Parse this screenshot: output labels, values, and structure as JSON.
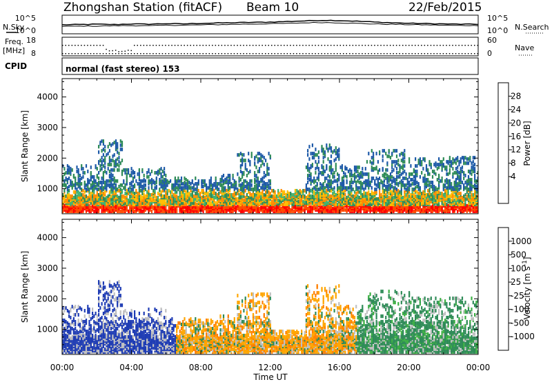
{
  "header": {
    "station_title": "Zhongshan Station (fitACF)",
    "beam": "Beam 10",
    "date": "22/Feb/2015"
  },
  "sky_panel": {
    "left_label": "N.Sky",
    "right_label": "N.Search",
    "left_ticks": [
      "10^5",
      "10^0"
    ],
    "right_ticks": [
      "10^5",
      "10^0"
    ]
  },
  "freq_panel": {
    "left_label_1": "Freq.",
    "left_label_2": "[MHz]",
    "right_label": "Nave",
    "left_ticks": [
      "18",
      "8"
    ],
    "right_ticks": [
      "60",
      "0"
    ]
  },
  "cpid_panel": {
    "label": "CPID",
    "mode_text": "normal (fast stereo) 153"
  },
  "axes": {
    "ylabel": "Slant Range [km]",
    "xlabel": "Time UT",
    "y_ticks": [
      "4000",
      "3000",
      "2000",
      "1000"
    ],
    "x_ticks": [
      "00:00",
      "04:00",
      "08:00",
      "12:00",
      "16:00",
      "20:00",
      "00:00"
    ]
  },
  "power_colorbar": {
    "label": "Power [dB]",
    "ticks": [
      "28",
      "24",
      "20",
      "16",
      "12",
      "8",
      "4"
    ],
    "colors": [
      "#ff0000",
      "#ff4a00",
      "#ff8c00",
      "#ffbf00",
      "#ffe600",
      "#3cb371",
      "#2e8b57",
      "#1e5aa8",
      "#0000ff"
    ]
  },
  "velocity_colorbar": {
    "label": "Velocity [m s",
    "label_sup": "-1",
    "label_end": "]",
    "ticks": [
      "1000",
      "500",
      "100",
      "25",
      "-25",
      "-100",
      "-500",
      "-1000"
    ],
    "colors": [
      "#1f3cb4",
      "#1f5fc0",
      "#2e8b57",
      "#3cb043",
      "#c0c0c0",
      "#ffa500",
      "#ff7f00",
      "#ff4500",
      "#ff0000"
    ]
  },
  "chart_data": [
    {
      "type": "line",
      "title": "Zhongshan Station (fitACF)",
      "xlabel": "",
      "ylabel": "N.Sky",
      "x_range_hours": [
        0,
        24
      ],
      "y_scale": "log",
      "series": [
        {
          "values_log10": [
            2.5,
            2.6,
            2.7,
            2.6,
            2.8,
            2.7,
            2.9,
            2.8,
            3.0,
            3.1,
            3.2,
            3.3,
            3.4,
            3.6,
            3.8,
            4.0,
            3.9,
            3.7,
            3.4,
            3.2,
            3.0,
            2.9,
            2.8,
            2.7,
            2.7
          ]
        },
        {
          "values_log10": [
            2.2,
            2.3,
            2.3,
            2.4,
            2.5,
            2.4,
            2.6,
            2.6,
            2.7,
            2.8,
            2.9,
            3.0,
            3.1,
            3.2,
            3.4,
            3.5,
            3.4,
            3.2,
            3.0,
            2.9,
            2.8,
            2.7,
            2.6,
            2.5,
            2.5
          ]
        }
      ]
    },
    {
      "type": "scatter",
      "title": "",
      "xlabel": "",
      "ylabel": "Freq. [MHz]",
      "x_range_hours": [
        0,
        24
      ],
      "y_range": [
        8,
        18
      ],
      "note_series": "freq and Nave"
    },
    {
      "type": "heatmap",
      "title": "",
      "xlabel": "",
      "ylabel": "Slant Range [km]",
      "x_range_hours": [
        0,
        24
      ],
      "y_range_km": [
        180,
        4600
      ],
      "colorbar": "Power [dB]",
      "color_range": [
        0,
        30
      ]
    },
    {
      "type": "heatmap",
      "title": "",
      "xlabel": "Time UT",
      "ylabel": "Slant Range [km]",
      "x_range_hours": [
        0,
        24
      ],
      "y_range_km": [
        180,
        4600
      ],
      "colorbar": "Velocity [m s-1]",
      "color_range": [
        -1000,
        1000
      ]
    }
  ]
}
